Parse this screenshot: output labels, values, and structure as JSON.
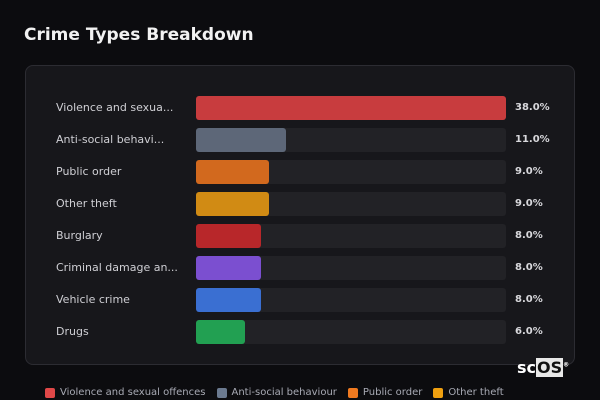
{
  "title": "Crime Types Breakdown",
  "chart_data": {
    "type": "bar",
    "orientation": "horizontal",
    "title": "Crime Types Breakdown",
    "categories": [
      "Violence and sexua...",
      "Anti-social behavi...",
      "Public order",
      "Other theft",
      "Burglary",
      "Criminal damage an...",
      "Vehicle crime",
      "Drugs"
    ],
    "values": [
      38.0,
      11.0,
      9.0,
      9.0,
      8.0,
      8.0,
      8.0,
      6.0
    ],
    "value_labels": [
      "38.0%",
      "11.0%",
      "9.0%",
      "9.0%",
      "8.0%",
      "8.0%",
      "8.0%",
      "6.0%"
    ],
    "colors": [
      "#c83c3e",
      "#5d6778",
      "#d2691e",
      "#d18b14",
      "#b8272a",
      "#7b4fd0",
      "#3a6fd2",
      "#22a052"
    ],
    "legend_position": "bottom",
    "legend": [
      {
        "label": "Violence and sexual offences",
        "color": "#e04848"
      },
      {
        "label": "Anti-social behaviour",
        "color": "#6b7a90"
      },
      {
        "label": "Public order",
        "color": "#f07a20"
      },
      {
        "label": "Other theft",
        "color": "#f0a010"
      }
    ]
  },
  "logo": {
    "text_sc": "sc",
    "text_os": "OS",
    "mark": "®"
  }
}
